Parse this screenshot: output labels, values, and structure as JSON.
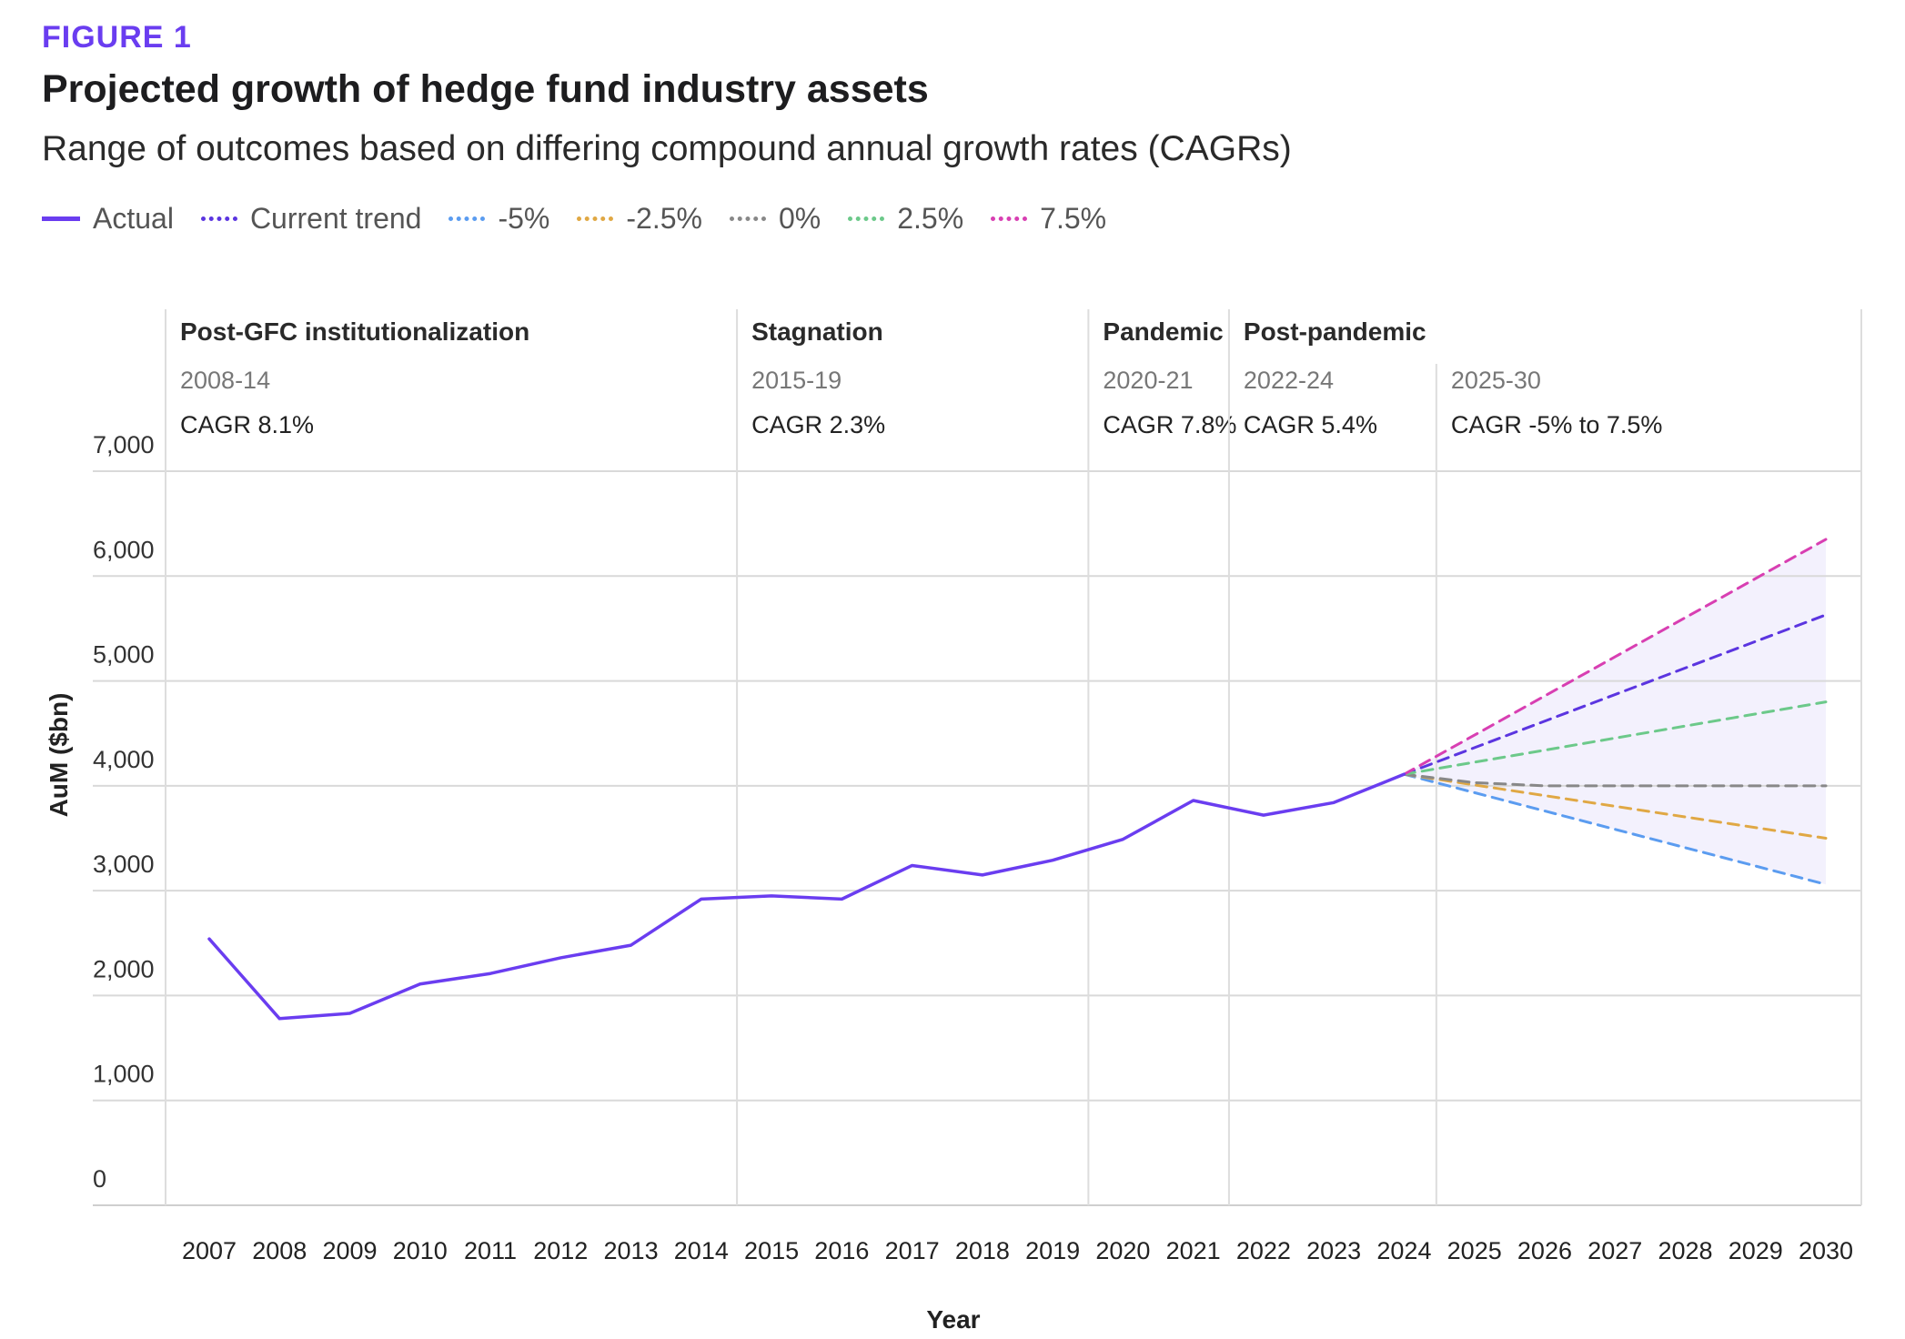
{
  "figure_label": "FIGURE 1",
  "title": "Projected growth of hedge fund industry assets",
  "subtitle": "Range of outcomes based on differing compound annual growth rates (CAGRs)",
  "legend": [
    {
      "label": "Actual",
      "color": "#6a3df0",
      "style": "solid"
    },
    {
      "label": "Current trend",
      "color": "#5b35e0",
      "style": "dotted"
    },
    {
      "label": "-5%",
      "color": "#5b9cf0",
      "style": "dotted"
    },
    {
      "label": "-2.5%",
      "color": "#e0a844",
      "style": "dotted"
    },
    {
      "label": "0%",
      "color": "#888888",
      "style": "dotted"
    },
    {
      "label": "2.5%",
      "color": "#6cc98a",
      "style": "dotted"
    },
    {
      "label": "7.5%",
      "color": "#d83fb2",
      "style": "dotted"
    }
  ],
  "chart_data": {
    "type": "line",
    "xlabel": "Year",
    "ylabel": "AuM ($bn)",
    "ylim": [
      0,
      7000
    ],
    "yticks": [
      0,
      1000,
      2000,
      3000,
      4000,
      5000,
      6000,
      7000
    ],
    "ytick_labels": [
      "0",
      "1,000",
      "2,000",
      "3,000",
      "4,000",
      "5,000",
      "6,000",
      "7,000"
    ],
    "xticks": [
      "2007",
      "2008",
      "2009",
      "2010",
      "2011",
      "2012",
      "2013",
      "2014",
      "2015",
      "2016",
      "2017",
      "2018",
      "2019",
      "2020",
      "2021",
      "2022",
      "2023",
      "2024",
      "2025",
      "2026",
      "2027",
      "2028",
      "2029",
      "2030"
    ],
    "grid": true,
    "series": [
      {
        "name": "Actual",
        "color": "#6a3df0",
        "style": "solid",
        "x": [
          2007,
          2008,
          2009,
          2010,
          2011,
          2012,
          2013,
          2014,
          2015,
          2016,
          2017,
          2018,
          2019,
          2020,
          2021,
          2022,
          2023,
          2024
        ],
        "y": [
          2540,
          1780,
          1830,
          2110,
          2210,
          2360,
          2480,
          2920,
          2950,
          2920,
          3240,
          3150,
          3290,
          3490,
          3860,
          3720,
          3840,
          4110
        ]
      },
      {
        "name": "Current trend",
        "color": "#5b35e0",
        "style": "dashed",
        "x": [
          2024,
          2030
        ],
        "y": [
          4110,
          5630
        ]
      },
      {
        "name": "-5%",
        "color": "#5b9cf0",
        "style": "dashed",
        "x": [
          2024,
          2030
        ],
        "y": [
          4110,
          3060
        ]
      },
      {
        "name": "-2.5%",
        "color": "#e0a844",
        "style": "dashed",
        "x": [
          2024,
          2030
        ],
        "y": [
          4110,
          3500
        ]
      },
      {
        "name": "0%",
        "color": "#888888",
        "style": "dashed",
        "x": [
          2024,
          2025,
          2026,
          2030
        ],
        "y": [
          4110,
          4030,
          4000,
          4000
        ]
      },
      {
        "name": "2.5%",
        "color": "#6cc98a",
        "style": "dashed",
        "x": [
          2024,
          2030
        ],
        "y": [
          4110,
          4800
        ]
      },
      {
        "name": "7.5%",
        "color": "#d83fb2",
        "style": "dashed",
        "x": [
          2024,
          2030
        ],
        "y": [
          4110,
          6350
        ]
      }
    ],
    "range_band": {
      "color": "#ebe8fb",
      "x": [
        2024,
        2030
      ],
      "upper": [
        4110,
        6350
      ],
      "lower": [
        4110,
        3060
      ]
    },
    "periods": [
      {
        "name": "Post-GFC institutionalization",
        "years": "2008-14",
        "cagr": "CAGR 8.1%",
        "start": 2007,
        "end": 2015
      },
      {
        "name": "Stagnation",
        "years": "2015-19",
        "cagr": "CAGR 2.3%",
        "start": 2015,
        "end": 2020
      },
      {
        "name": "Pandemic",
        "years": "2020-21",
        "cagr": "CAGR 7.8%",
        "start": 2020,
        "end": 2022
      },
      {
        "name": "Post-pandemic",
        "years": "2022-24",
        "cagr": "CAGR 5.4%",
        "start": 2022,
        "end": 2024.95
      },
      {
        "name": "",
        "years": "2025-30",
        "cagr": "CAGR -5% to 7.5%",
        "start": 2024.95,
        "end": 2030.98
      }
    ]
  }
}
